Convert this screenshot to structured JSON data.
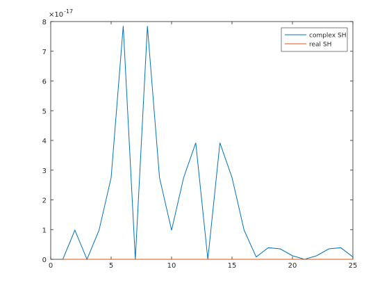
{
  "chart_data": {
    "type": "line",
    "x": [
      1,
      2,
      3,
      4,
      5,
      6,
      7,
      8,
      9,
      10,
      11,
      12,
      13,
      14,
      15,
      16,
      17,
      18,
      19,
      20,
      21,
      22,
      23,
      24,
      25
    ],
    "series": [
      {
        "name": "complex SH",
        "color": "#0072bd",
        "values": [
          0,
          0.98,
          0,
          0.98,
          2.75,
          7.85,
          0,
          7.85,
          2.75,
          0.98,
          2.75,
          3.92,
          0,
          3.92,
          2.75,
          0.98,
          0.08,
          0.39,
          0.35,
          0.12,
          0,
          0.12,
          0.35,
          0.39,
          0.08
        ]
      },
      {
        "name": "real SH",
        "color": "#d95319",
        "values": [
          0,
          0,
          0,
          0,
          0,
          0,
          0,
          0,
          0,
          0,
          0,
          0,
          0,
          0,
          0,
          0,
          0,
          0,
          0,
          0,
          0,
          0,
          0,
          0,
          0
        ]
      }
    ],
    "xlim": [
      0,
      25
    ],
    "xticks": [
      0,
      5,
      10,
      15,
      20,
      25
    ],
    "ylim": [
      0,
      8
    ],
    "yticks": [
      0,
      1,
      2,
      3,
      4,
      5,
      6,
      7,
      8
    ],
    "y_exponent": {
      "base": "×10",
      "power": "-17"
    },
    "legend": "northeast",
    "grid": false
  }
}
